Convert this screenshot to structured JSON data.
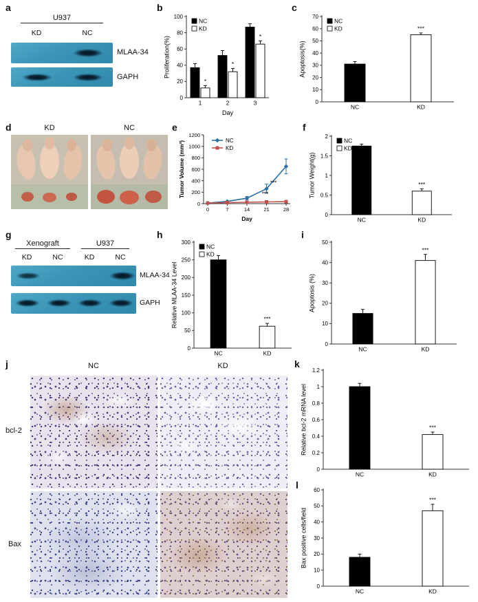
{
  "panels": {
    "a": {
      "label": "a",
      "header": "U937",
      "lanes": [
        "KD",
        "NC"
      ],
      "blot_rows": [
        "MLAA-34",
        "GAPH"
      ]
    },
    "b": {
      "label": "b"
    },
    "c": {
      "label": "c"
    },
    "d": {
      "label": "d",
      "photo_labels": [
        "KD",
        "NC"
      ]
    },
    "e": {
      "label": "e"
    },
    "f": {
      "label": "f"
    },
    "g": {
      "label": "g",
      "group_headers": [
        "Xenograft",
        "U937"
      ],
      "lanes": [
        "KD",
        "NC",
        "KD",
        "NC"
      ],
      "blot_rows": [
        "MLAA-34",
        "GAPH"
      ]
    },
    "h": {
      "label": "h"
    },
    "i": {
      "label": "i"
    },
    "j": {
      "label": "j",
      "col_headers": [
        "NC",
        "KD"
      ],
      "row_labels": [
        "bcl-2",
        "Bax"
      ]
    },
    "k": {
      "label": "k"
    },
    "l": {
      "label": "l"
    }
  },
  "chart_data": [
    {
      "id": "b",
      "type": "bar",
      "ylabel": "Proliferation(%)",
      "xlabel": "Day",
      "ylim": [
        0,
        100
      ],
      "ystep": 20,
      "categories": [
        "1",
        "2",
        "3"
      ],
      "series": [
        {
          "name": "NC",
          "fill": "#000000",
          "values": [
            37,
            52,
            87
          ],
          "errors": [
            5,
            6,
            4
          ],
          "sig": [
            null,
            null,
            null
          ]
        },
        {
          "name": "KD",
          "fill": "#ffffff",
          "values": [
            12,
            32,
            66
          ],
          "errors": [
            3,
            4,
            4
          ],
          "sig": [
            "*",
            "*",
            "*"
          ]
        }
      ],
      "legend": [
        {
          "label": "NC",
          "fill": "#000000"
        },
        {
          "label": "KD",
          "fill": "#ffffff"
        }
      ]
    },
    {
      "id": "c",
      "type": "bar",
      "ylabel": "Apoptosis(%)",
      "xlabel": "",
      "ylim": [
        0,
        70
      ],
      "ystep": 10,
      "bars": [
        {
          "label": "NC",
          "value": 31,
          "error": 2,
          "fill": "#000000",
          "sig": null
        },
        {
          "label": "KD",
          "value": 55,
          "error": 1.5,
          "fill": "#ffffff",
          "sig": "***"
        }
      ],
      "legend": [
        {
          "label": "NC",
          "fill": "#000000"
        },
        {
          "label": "KD",
          "fill": "#ffffff"
        }
      ]
    },
    {
      "id": "e",
      "type": "line",
      "ylabel": "Tumor Volume (mm³)",
      "xlabel": "Day",
      "ylim": [
        0,
        1200
      ],
      "ystep": 200,
      "x": [
        0,
        7,
        14,
        21,
        28
      ],
      "xticks": [
        0,
        7,
        14,
        21,
        28
      ],
      "series": [
        {
          "name": "NC",
          "color": "#2e6da4",
          "marker": "diamond",
          "values": [
            10,
            40,
            95,
            260,
            650
          ],
          "errors": [
            0,
            0,
            30,
            80,
            130
          ]
        },
        {
          "name": "KD",
          "color": "#c0504d",
          "marker": "square",
          "values": [
            10,
            18,
            24,
            30,
            35
          ],
          "errors": [
            0,
            0,
            0,
            0,
            0
          ]
        }
      ],
      "annotations": [
        {
          "x": 20.5,
          "y": 140,
          "text": "***"
        },
        {
          "x": 23.5,
          "y": 330,
          "text": "***"
        }
      ]
    },
    {
      "id": "f",
      "type": "bar",
      "ylabel": "Tumor Weight(g)",
      "xlabel": "",
      "ylim": [
        0,
        2
      ],
      "ystep": 0.5,
      "bars": [
        {
          "label": "NC",
          "value": 1.75,
          "error": 0.05,
          "fill": "#000000",
          "sig": null
        },
        {
          "label": "KD",
          "value": 0.6,
          "error": 0.06,
          "fill": "#ffffff",
          "sig": "***"
        }
      ],
      "legend": [
        {
          "label": "NC",
          "fill": "#000000"
        },
        {
          "label": "KD",
          "fill": "#ffffff"
        }
      ]
    },
    {
      "id": "h",
      "type": "bar",
      "ylabel": "Relative MLAA-34 Level",
      "xlabel": "",
      "ylim": [
        0,
        300
      ],
      "ystep": 50,
      "bars": [
        {
          "label": "NC",
          "value": 250,
          "error": 12,
          "fill": "#000000",
          "sig": null
        },
        {
          "label": "KD",
          "value": 62,
          "error": 8,
          "fill": "#ffffff",
          "sig": "***"
        }
      ],
      "legend": [
        {
          "label": "NC",
          "fill": "#000000"
        },
        {
          "label": "KD",
          "fill": "#ffffff"
        }
      ]
    },
    {
      "id": "i",
      "type": "bar",
      "ylabel": "Apoptosis (%)",
      "xlabel": "",
      "ylim": [
        0,
        50
      ],
      "ystep": 10,
      "bars": [
        {
          "label": "NC",
          "value": 15,
          "error": 2,
          "fill": "#000000",
          "sig": null
        },
        {
          "label": "KD",
          "value": 41,
          "error": 3,
          "fill": "#ffffff",
          "sig": "***"
        }
      ]
    },
    {
      "id": "k",
      "type": "bar",
      "ylabel": "Relative bcl-2 mRNA level",
      "xlabel": "",
      "ylim": [
        0,
        1.2
      ],
      "ystep": 0.2,
      "bars": [
        {
          "label": "NC",
          "value": 1.0,
          "error": 0.04,
          "fill": "#000000",
          "sig": null
        },
        {
          "label": "KD",
          "value": 0.42,
          "error": 0.03,
          "fill": "#ffffff",
          "sig": "***"
        }
      ]
    },
    {
      "id": "l",
      "type": "bar",
      "ylabel": "Bax positive cells/field",
      "xlabel": "",
      "ylim": [
        0,
        60
      ],
      "ystep": 10,
      "bars": [
        {
          "label": "NC",
          "value": 18,
          "error": 2,
          "fill": "#000000",
          "sig": null
        },
        {
          "label": "KD",
          "value": 47,
          "error": 4,
          "fill": "#ffffff",
          "sig": "***"
        }
      ]
    }
  ]
}
